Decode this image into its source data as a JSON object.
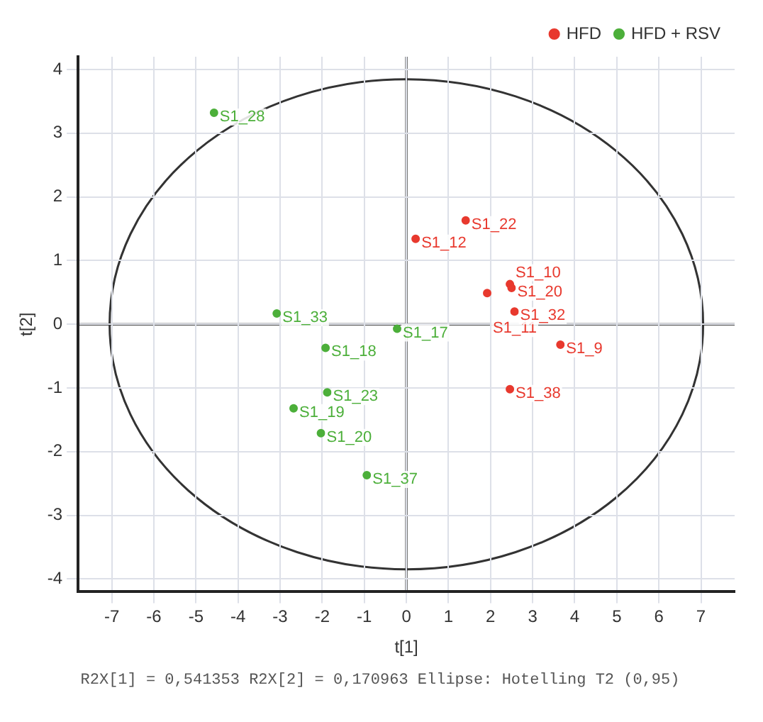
{
  "chart_data": {
    "type": "scatter",
    "xlabel": "t[1]",
    "ylabel": "t[2]",
    "xlim": [
      -7.8,
      7.8
    ],
    "ylim": [
      -4.2,
      4.2
    ],
    "xticks": [
      -7,
      -6,
      -5,
      -4,
      -3,
      -2,
      -1,
      0,
      1,
      2,
      3,
      4,
      5,
      6,
      7
    ],
    "yticks": [
      -4,
      -3,
      -2,
      -1,
      0,
      1,
      2,
      3,
      4
    ],
    "grid": true,
    "legend": "top right",
    "marker": "circle",
    "series": [
      {
        "name": "HFD",
        "color": "#e8392e",
        "x": [
          1.41,
          0.22,
          2.46,
          2.5,
          1.92,
          2.57,
          3.66,
          2.46
        ],
        "values": [
          1.63,
          1.34,
          0.63,
          0.57,
          0.49,
          0.2,
          -0.32,
          -1.02
        ]
      },
      {
        "name": "HFD + RSV",
        "color": "#4caf3a",
        "x": [
          -4.57,
          -3.08,
          -0.22,
          -1.92,
          -1.88,
          -2.68,
          -2.03,
          -0.94
        ],
        "values": [
          3.32,
          0.17,
          -0.07,
          -0.37,
          -1.07,
          -1.32,
          -1.71,
          -2.37
        ]
      }
    ],
    "annotations": [
      {
        "text": "S1_22",
        "x": 1.41,
        "y": 1.63
      },
      {
        "text": "S1_12",
        "x": 0.22,
        "y": 1.34
      },
      {
        "text": "S1_10",
        "x": 2.46,
        "y": 0.63
      },
      {
        "text": "S1_20",
        "x": 2.5,
        "y": 0.57
      },
      {
        "text": "S1_11",
        "x": 1.92,
        "y": 0.49
      },
      {
        "text": "S1_32",
        "x": 2.57,
        "y": 0.2
      },
      {
        "text": "S1_9",
        "x": 3.66,
        "y": -0.32
      },
      {
        "text": "S1_38",
        "x": 2.46,
        "y": -1.02
      },
      {
        "text": "S1_28",
        "x": -4.57,
        "y": 3.32
      },
      {
        "text": "S1_33",
        "x": -3.08,
        "y": 0.17
      },
      {
        "text": "S1_17",
        "x": -0.22,
        "y": -0.07
      },
      {
        "text": "S1_18",
        "x": -1.92,
        "y": -0.37
      },
      {
        "text": "S1_23",
        "x": -1.88,
        "y": -1.07
      },
      {
        "text": "S1_19",
        "x": -2.68,
        "y": -1.32
      },
      {
        "text": "S1_20",
        "x": -2.03,
        "y": -1.71
      },
      {
        "text": "S1_37",
        "x": -0.94,
        "y": -2.37
      },
      "R2X[1] = 0,541353  R2X[2] = 0,170963 Ellipse: Hotelling T2 (0,95)"
    ]
  }
}
